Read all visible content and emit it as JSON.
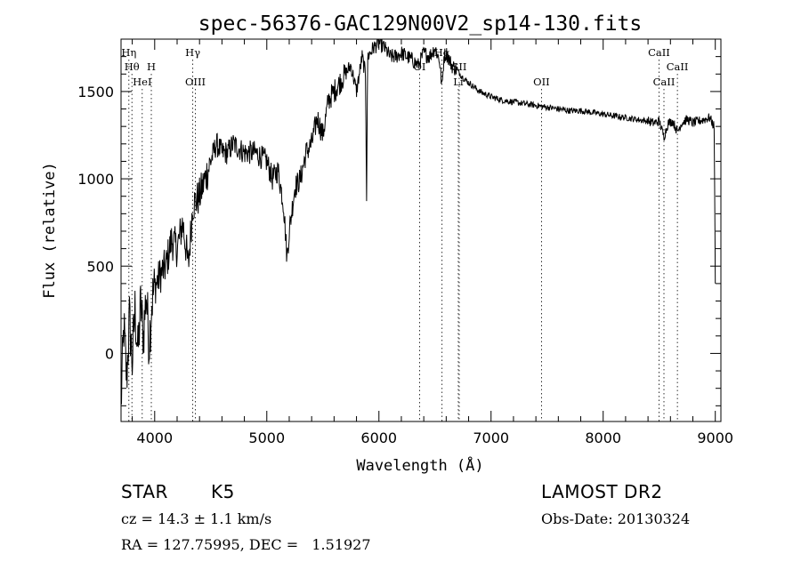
{
  "chart_data": {
    "type": "line",
    "title": "spec-56376-GAC129N00V2_sp14-130.fits",
    "xlabel": "Wavelength (Å)",
    "ylabel": "Flux (relative)",
    "xlim": [
      3700,
      9050
    ],
    "ylim": [
      -390,
      1800
    ],
    "xticks": [
      4000,
      5000,
      6000,
      7000,
      8000,
      9000
    ],
    "yticks": [
      0,
      500,
      1000,
      1500
    ],
    "grid": false,
    "series": [
      {
        "x": [
          3700,
          3725,
          3750,
          3775,
          3800,
          3825,
          3850,
          3875,
          3900,
          3925,
          3950,
          3975,
          4000,
          4050,
          4100,
          4150,
          4200,
          4250,
          4300,
          4340,
          4400,
          4450,
          4500,
          4550,
          4600,
          4650,
          4700,
          4800,
          4900,
          5000,
          5050,
          5100,
          5150,
          5180,
          5200,
          5250,
          5300,
          5350,
          5400,
          5450,
          5500,
          5550,
          5600,
          5650,
          5700,
          5750,
          5800,
          5850,
          5880,
          5890,
          5900,
          5950,
          6000,
          6050,
          6100,
          6150,
          6200,
          6250,
          6300,
          6350,
          6400,
          6450,
          6500,
          6540,
          6563,
          6580,
          6600,
          6650,
          6700,
          6750,
          6800,
          6900,
          7000,
          7100,
          7200,
          7300,
          7400,
          7500,
          7600,
          7700,
          7800,
          7900,
          8000,
          8100,
          8200,
          8300,
          8400,
          8450,
          8500,
          8542,
          8580,
          8620,
          8662,
          8700,
          8750,
          8800,
          8850,
          8900,
          8950,
          8990,
          9000
        ],
        "y": [
          -300,
          150,
          -150,
          200,
          -50,
          250,
          0,
          280,
          100,
          350,
          50,
          300,
          380,
          450,
          500,
          650,
          600,
          750,
          500,
          850,
          900,
          1000,
          1100,
          1200,
          1150,
          1150,
          1200,
          1150,
          1150,
          1100,
          1000,
          1050,
          850,
          550,
          700,
          950,
          1000,
          1150,
          1200,
          1350,
          1250,
          1450,
          1500,
          1550,
          1600,
          1650,
          1500,
          1700,
          1600,
          900,
          1700,
          1750,
          1780,
          1750,
          1700,
          1700,
          1720,
          1700,
          1680,
          1650,
          1720,
          1700,
          1750,
          1680,
          1520,
          1700,
          1720,
          1650,
          1620,
          1580,
          1550,
          1500,
          1470,
          1450,
          1440,
          1430,
          1420,
          1410,
          1400,
          1390,
          1390,
          1380,
          1370,
          1360,
          1350,
          1340,
          1330,
          1320,
          1330,
          1240,
          1320,
          1330,
          1270,
          1320,
          1340,
          1320,
          1330,
          1340,
          1350,
          1300,
          400
        ]
      }
    ],
    "lines": [
      {
        "x": 3770,
        "label": "Hη",
        "row": 0
      },
      {
        "x": 3797,
        "label": "Hθ",
        "row": 1
      },
      {
        "x": 3889,
        "label": "HeI",
        "row": 2
      },
      {
        "x": 3970,
        "label": "H",
        "row": 1
      },
      {
        "x": 4340,
        "label": "Hγ",
        "row": 0
      },
      {
        "x": 4363,
        "label": "OIII",
        "row": 2
      },
      {
        "x": 6363,
        "label": "OI",
        "row": 1
      },
      {
        "x": 6563,
        "label": "Hα",
        "row": 0
      },
      {
        "x": 6716,
        "label": "SII",
        "row": 1
      },
      {
        "x": 6708,
        "label": "Li",
        "row": 2
      },
      {
        "x": 7450,
        "label": "OII",
        "row": 2
      },
      {
        "x": 8498,
        "label": "CaII",
        "row": 0
      },
      {
        "x": 8542,
        "label": "CaII",
        "row": 2
      },
      {
        "x": 8662,
        "label": "CaII",
        "row": 1
      }
    ]
  },
  "footer": {
    "object_type": "STAR",
    "subclass": "K5",
    "survey": "LAMOST DR2",
    "cz": "cz = 14.3 ± 1.1 km/s",
    "obs_date": "Obs-Date: 20130324",
    "coords": "RA = 127.75995, DEC =   1.51927"
  }
}
